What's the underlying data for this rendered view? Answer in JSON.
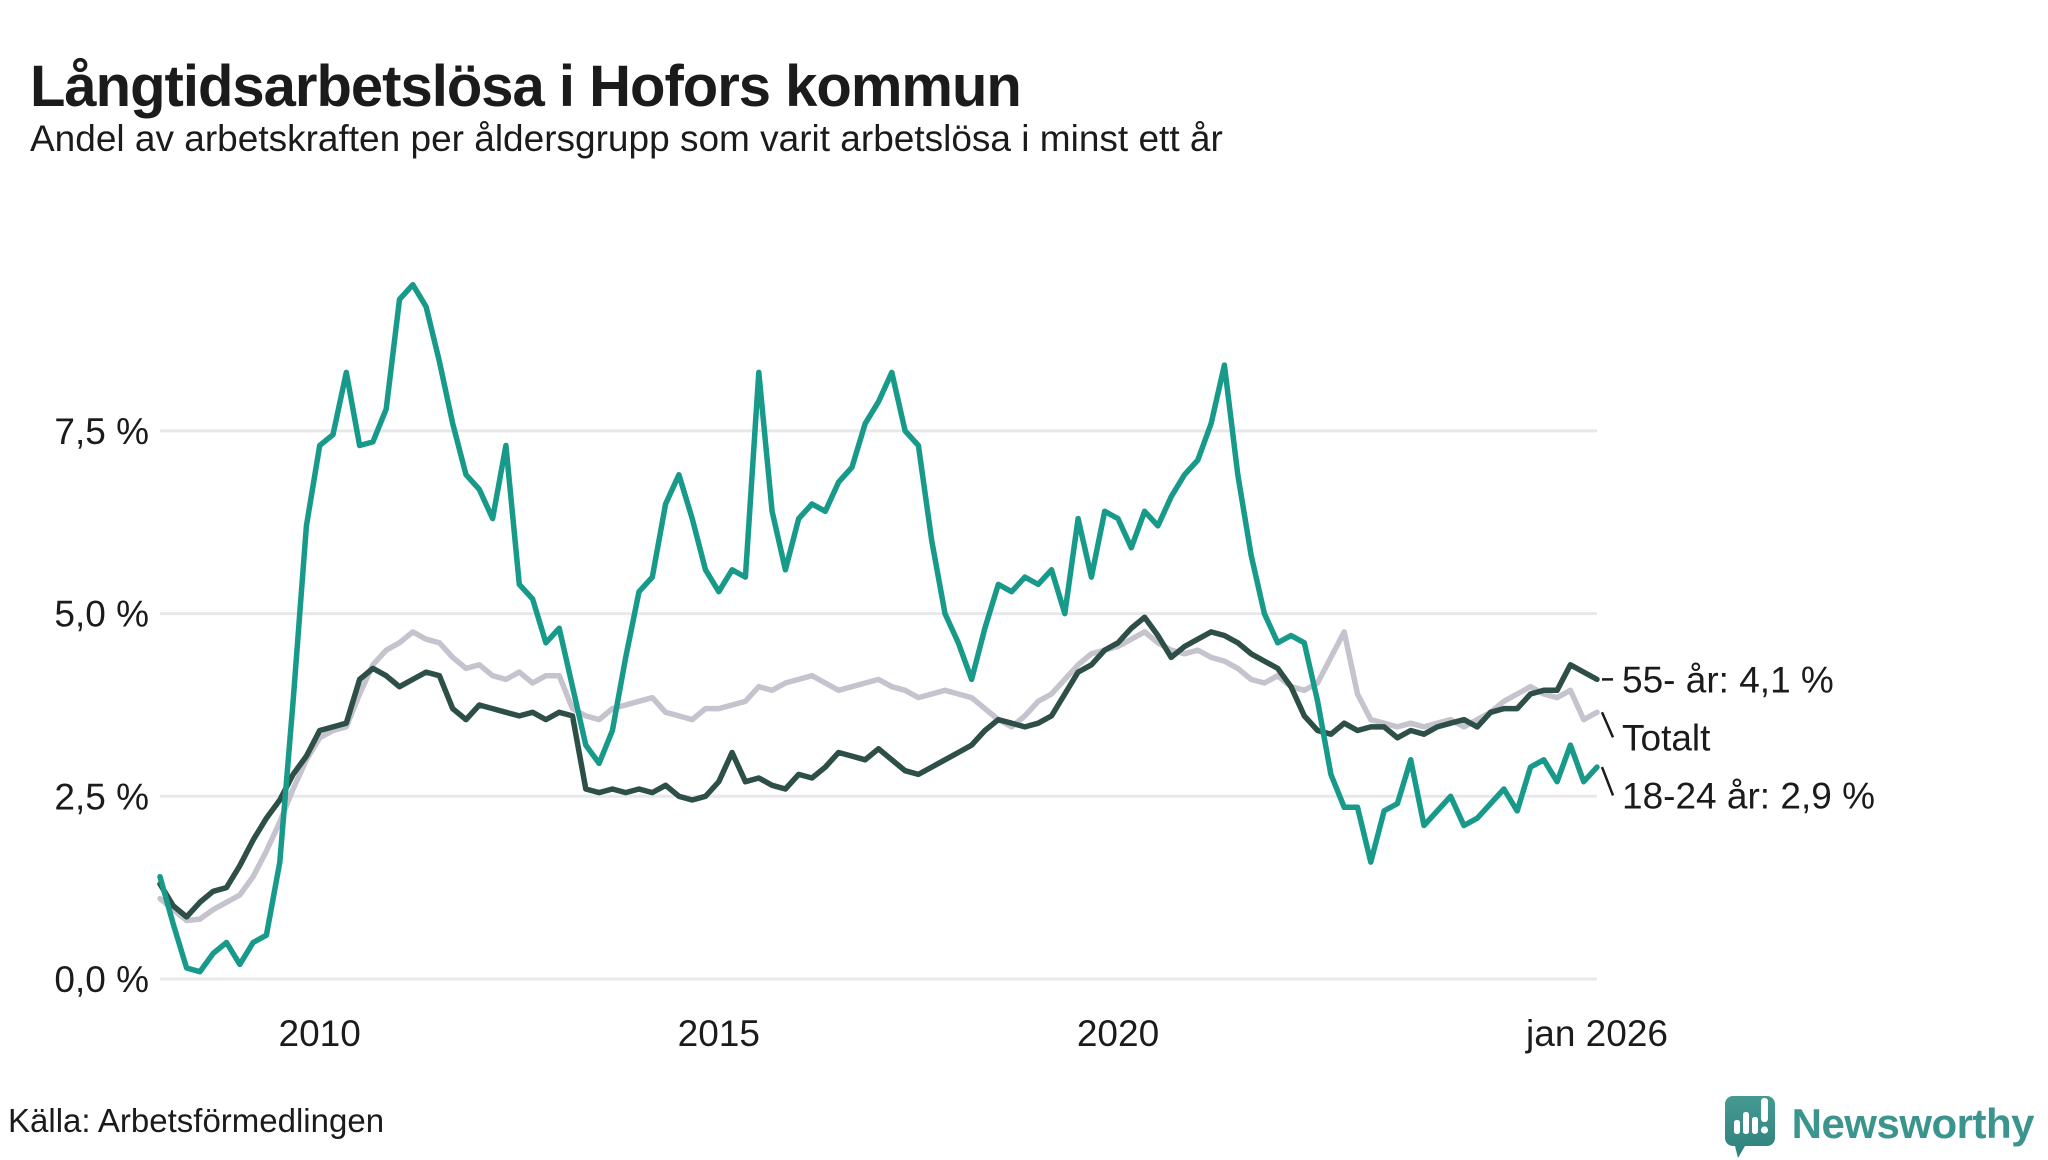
{
  "header": {
    "title": "Långtidsarbetslösa i Hofors kommun",
    "subtitle": "Andel av arbetskraften per åldersgrupp som varit arbetslösa i minst ett år"
  },
  "chart_data": {
    "type": "line",
    "title": "Långtidsarbetslösa i Hofors kommun",
    "ylabel": "Andel av arbetskraften (%)",
    "unit": "%",
    "x_start": "jan 2008",
    "x_end": "jan 2026",
    "sampling": "one value every 2 months, jan 2008 - jan 2026",
    "ylim": [
      0,
      9.9
    ],
    "grid": true,
    "grid_color": "#e8e8ea",
    "text_color": "#1b1b1b",
    "y_ticks": [
      {
        "label": "0,0 %",
        "value": 0
      },
      {
        "label": "2,5 %",
        "value": 2.5
      },
      {
        "label": "5,0 %",
        "value": 5
      },
      {
        "label": "7,5 %",
        "value": 7.5
      }
    ],
    "x_ticks": [
      {
        "label": "2010",
        "index": 12
      },
      {
        "label": "2015",
        "index": 42
      },
      {
        "label": "2020",
        "index": 72
      },
      {
        "label": "jan 2026",
        "index": 108
      }
    ],
    "series": [
      {
        "id": "totalt",
        "name": "Totalt",
        "label": "Totalt",
        "color": "#c5c3cd",
        "end_value": 3.65,
        "values": [
          1.1,
          0.95,
          0.8,
          0.82,
          0.95,
          1.05,
          1.15,
          1.4,
          1.75,
          2.15,
          2.6,
          3.0,
          3.3,
          3.4,
          3.45,
          3.9,
          4.3,
          4.5,
          4.6,
          4.75,
          4.65,
          4.6,
          4.4,
          4.25,
          4.3,
          4.15,
          4.1,
          4.2,
          4.05,
          4.15,
          4.15,
          3.7,
          3.6,
          3.55,
          3.7,
          3.75,
          3.8,
          3.85,
          3.65,
          3.6,
          3.55,
          3.7,
          3.7,
          3.75,
          3.8,
          4.0,
          3.95,
          4.05,
          4.1,
          4.15,
          4.05,
          3.95,
          4.0,
          4.05,
          4.1,
          4.0,
          3.95,
          3.85,
          3.9,
          3.95,
          3.9,
          3.85,
          3.7,
          3.55,
          3.45,
          3.6,
          3.8,
          3.9,
          4.1,
          4.3,
          4.45,
          4.5,
          4.55,
          4.65,
          4.75,
          4.6,
          4.5,
          4.45,
          4.5,
          4.4,
          4.35,
          4.25,
          4.1,
          4.05,
          4.15,
          4.0,
          3.95,
          4.05,
          4.4,
          4.75,
          3.9,
          3.55,
          3.5,
          3.45,
          3.5,
          3.45,
          3.5,
          3.55,
          3.45,
          3.55,
          3.65,
          3.8,
          3.9,
          4.0,
          3.9,
          3.85,
          3.95,
          3.55,
          3.65
        ]
      },
      {
        "id": "55",
        "name": "55- år",
        "label": "55- år: 4,1 %",
        "color": "#2d4f47",
        "end_value": 4.1,
        "values": [
          1.3,
          1.0,
          0.85,
          1.05,
          1.2,
          1.25,
          1.55,
          1.9,
          2.2,
          2.45,
          2.8,
          3.05,
          3.4,
          3.45,
          3.5,
          4.1,
          4.25,
          4.15,
          4.0,
          4.1,
          4.2,
          4.15,
          3.7,
          3.55,
          3.75,
          3.7,
          3.65,
          3.6,
          3.65,
          3.55,
          3.65,
          3.6,
          2.6,
          2.55,
          2.6,
          2.55,
          2.6,
          2.55,
          2.65,
          2.5,
          2.45,
          2.5,
          2.7,
          3.1,
          2.7,
          2.75,
          2.65,
          2.6,
          2.8,
          2.75,
          2.9,
          3.1,
          3.05,
          3.0,
          3.15,
          3.0,
          2.85,
          2.8,
          2.9,
          3.0,
          3.1,
          3.2,
          3.4,
          3.55,
          3.5,
          3.45,
          3.5,
          3.6,
          3.9,
          4.2,
          4.3,
          4.5,
          4.6,
          4.8,
          4.95,
          4.7,
          4.4,
          4.55,
          4.65,
          4.75,
          4.7,
          4.6,
          4.45,
          4.35,
          4.25,
          4.0,
          3.6,
          3.4,
          3.35,
          3.5,
          3.4,
          3.45,
          3.45,
          3.3,
          3.4,
          3.35,
          3.45,
          3.5,
          3.55,
          3.45,
          3.65,
          3.7,
          3.7,
          3.9,
          3.95,
          3.95,
          4.3,
          4.2,
          4.1
        ]
      },
      {
        "id": "18-24",
        "name": "18-24 år",
        "label": "18-24 år: 2,9 %",
        "color": "#179a8a",
        "end_value": 2.9,
        "values": [
          1.4,
          0.75,
          0.15,
          0.1,
          0.35,
          0.5,
          0.2,
          0.5,
          0.6,
          1.6,
          3.8,
          6.2,
          7.3,
          7.45,
          8.3,
          7.3,
          7.35,
          7.8,
          9.3,
          9.5,
          9.2,
          8.45,
          7.6,
          6.9,
          6.7,
          6.3,
          7.3,
          5.4,
          5.2,
          4.6,
          4.8,
          4.0,
          3.2,
          2.95,
          3.4,
          4.4,
          5.3,
          5.5,
          6.5,
          6.9,
          6.3,
          5.6,
          5.3,
          5.6,
          5.5,
          8.3,
          6.4,
          5.6,
          6.3,
          6.5,
          6.4,
          6.8,
          7.0,
          7.6,
          7.9,
          8.3,
          7.5,
          7.3,
          6.0,
          5.0,
          4.6,
          4.1,
          4.8,
          5.4,
          5.3,
          5.5,
          5.4,
          5.6,
          5.0,
          6.3,
          5.5,
          6.4,
          6.3,
          5.9,
          6.4,
          6.2,
          6.6,
          6.9,
          7.1,
          7.6,
          8.4,
          6.9,
          5.8,
          5.0,
          4.6,
          4.7,
          4.6,
          3.8,
          2.8,
          2.35,
          2.35,
          1.6,
          2.3,
          2.4,
          3.0,
          2.1,
          2.3,
          2.5,
          2.1,
          2.2,
          2.4,
          2.6,
          2.3,
          2.9,
          3.0,
          2.7,
          3.2,
          2.7,
          2.9
        ]
      }
    ]
  },
  "footer": {
    "source": "Källa: Arbetsförmedlingen",
    "brand": "Newsworthy",
    "brand_color": "#3b948d"
  }
}
